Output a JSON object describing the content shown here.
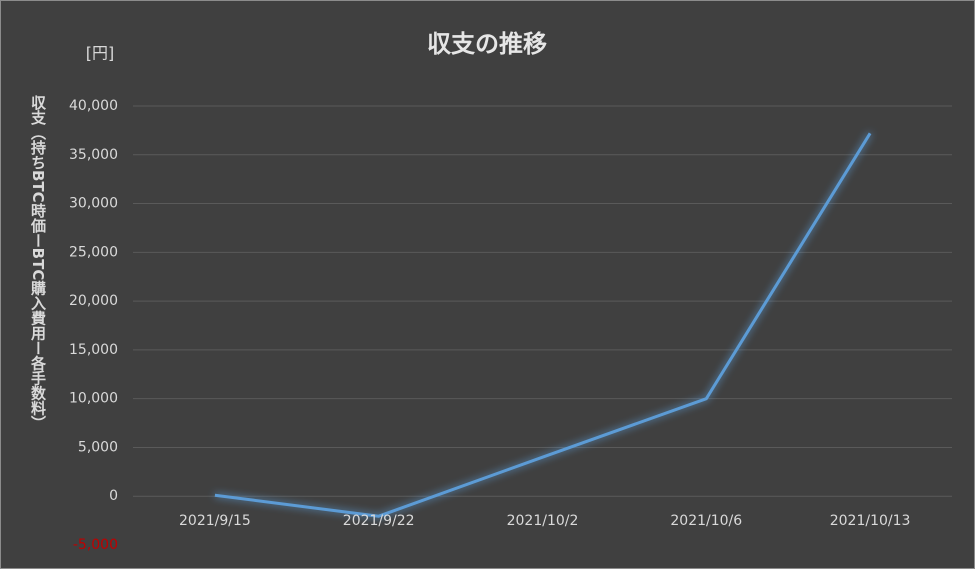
{
  "chart_data": {
    "type": "line",
    "title": "収支の推移",
    "y_unit_label": "[円]",
    "y_axis_label": "収支（持ちBTC時価ーBTC購入費用ー各手数料）",
    "categories": [
      "2021/9/15",
      "2021/9/22",
      "2021/10/2",
      "2021/10/6",
      "2021/10/13"
    ],
    "values": [
      100,
      -2050,
      4000,
      10000,
      37200
    ],
    "color": "#5b9bd5",
    "ylim": [
      -5000,
      40000
    ],
    "yticks": [
      {
        "value": -5000,
        "label": "-5,000"
      },
      0,
      {
        "value": 5000,
        "label": "5,000"
      },
      {
        "value": 10000,
        "label": "10,000"
      },
      {
        "value": 15000,
        "label": "15,000"
      },
      {
        "value": 20000,
        "label": "20,000"
      },
      {
        "value": 25000,
        "label": "25,000"
      },
      {
        "value": 30000,
        "label": "30,000"
      },
      {
        "value": 35000,
        "label": "35,000"
      },
      {
        "value": 40000,
        "label": "40,000"
      }
    ],
    "negative_tick_color": "#c00000",
    "grid": true
  }
}
